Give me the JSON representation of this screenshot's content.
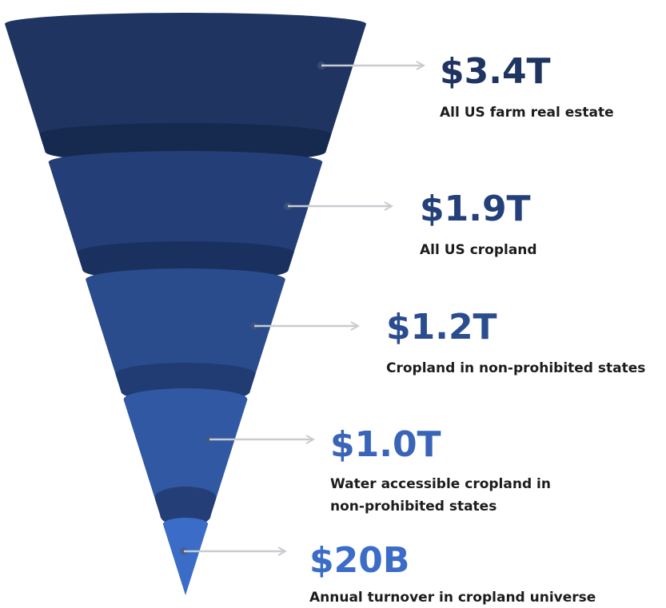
{
  "stages": [
    {
      "value": "$3.4T",
      "label": [
        "All US farm real estate"
      ]
    },
    {
      "value": "$1.9T",
      "label": [
        "All US cropland"
      ]
    },
    {
      "value": "$1.2T",
      "label": [
        "Cropland in non-prohibited states"
      ]
    },
    {
      "value": "$1.0T",
      "label": [
        "Water accessible cropland in",
        "non-prohibited states"
      ]
    },
    {
      "value": "$20B",
      "label": [
        "Annual turnover in cropland universe"
      ]
    }
  ]
}
